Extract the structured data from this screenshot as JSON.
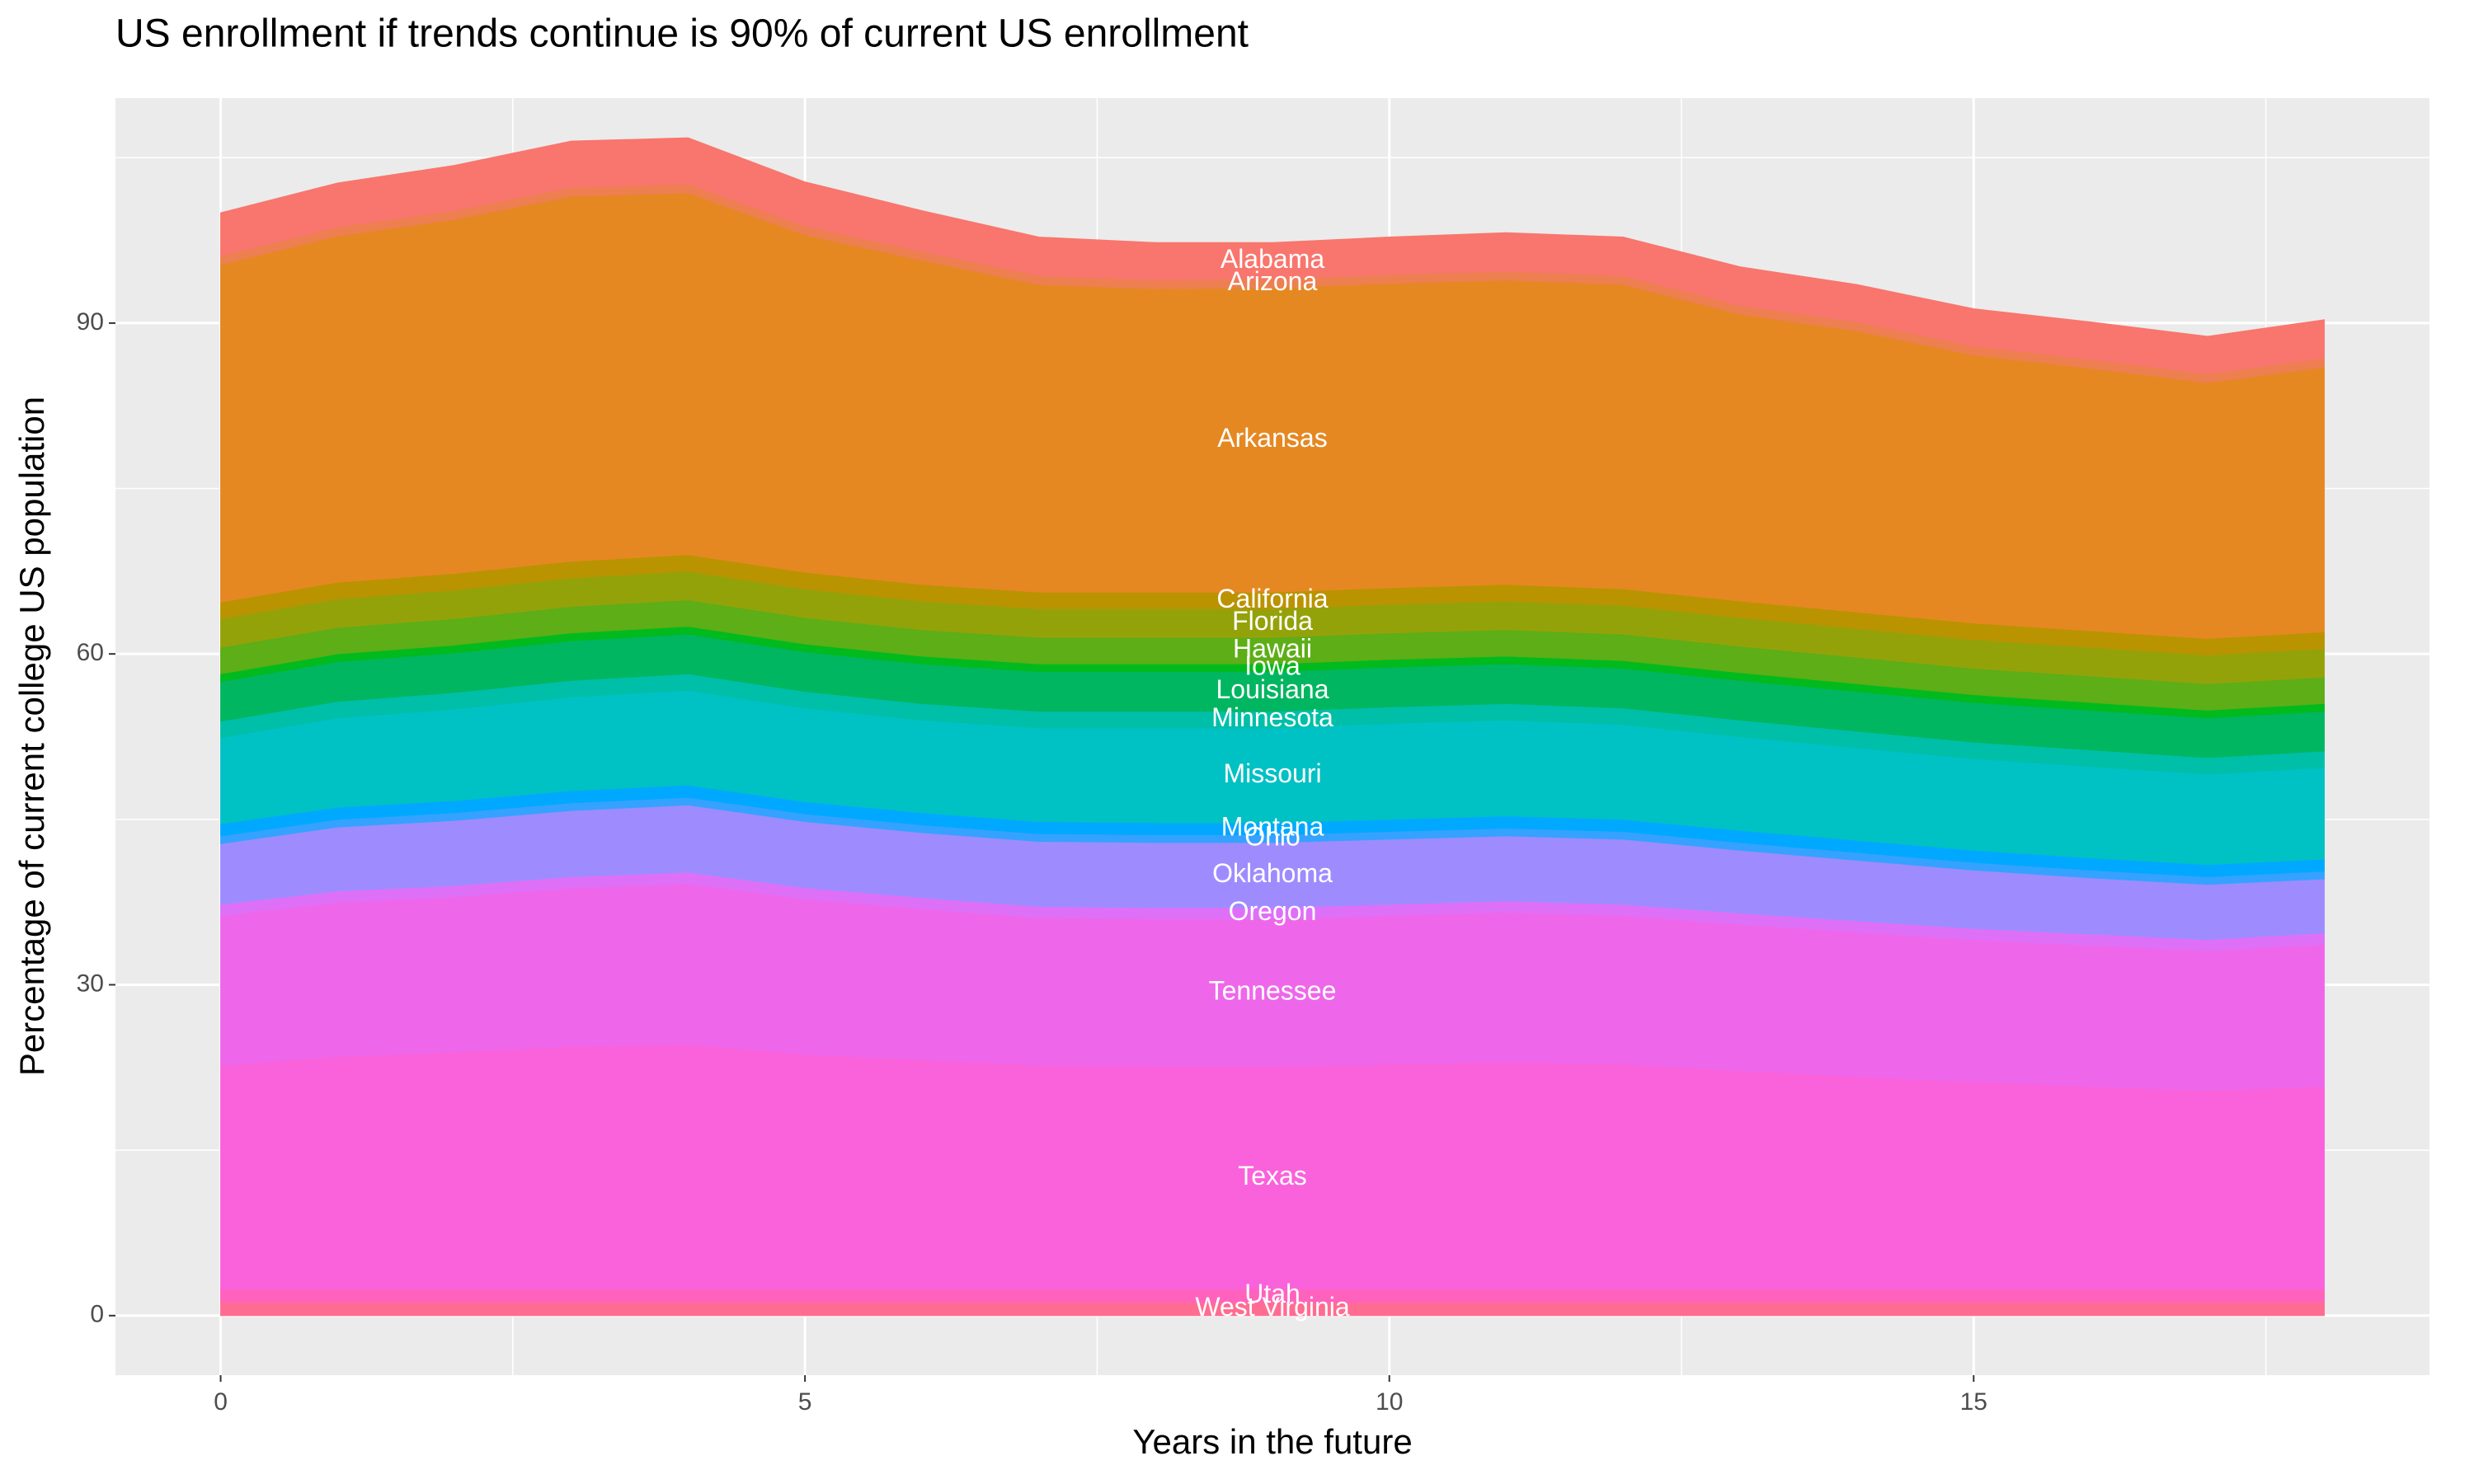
{
  "chart_data": {
    "type": "stacked_area",
    "title": "US enrollment if trends continue is 90% of current US enrollment",
    "x_label": "Years in the future",
    "y_label": "Percentage of current college US population",
    "x": [
      0,
      1,
      2,
      3,
      4,
      5,
      6,
      7,
      8,
      9,
      10,
      11,
      12,
      13,
      14,
      15,
      16,
      17,
      18
    ],
    "xlim": [
      -0.9,
      18.9
    ],
    "xticks": [
      0,
      5,
      10,
      15
    ],
    "ylim": [
      -5.4,
      110.4
    ],
    "yticks": [
      0,
      30,
      60,
      90
    ],
    "grid": true,
    "series": [
      {
        "name": "West Virginia",
        "color": "#FF6C91",
        "values": [
          1.2,
          1.2,
          1.2,
          1.2,
          1.2,
          1.2,
          1.2,
          1.2,
          1.2,
          1.2,
          1.2,
          1.2,
          1.2,
          1.2,
          1.2,
          1.2,
          1.2,
          1.2,
          1.2
        ]
      },
      {
        "name": "Utah",
        "color": "#FF62BC",
        "values": [
          1.2,
          1.2,
          1.2,
          1.2,
          1.2,
          1.2,
          1.2,
          1.2,
          1.2,
          1.2,
          1.2,
          1.2,
          1.2,
          1.2,
          1.2,
          1.2,
          1.2,
          1.2,
          1.2
        ]
      },
      {
        "name": "Texas",
        "color": "#FA62DB",
        "values": [
          20.3,
          21.1,
          21.5,
          22.0,
          22.2,
          21.3,
          20.8,
          20.3,
          20.2,
          20.2,
          20.4,
          20.6,
          20.4,
          19.8,
          19.3,
          18.8,
          18.4,
          18.0,
          18.4
        ]
      },
      {
        "name": "Tennessee",
        "color": "#EE67EA",
        "values": [
          13.6,
          14.0,
          14.1,
          14.4,
          14.6,
          14.1,
          13.7,
          13.4,
          13.4,
          13.4,
          13.5,
          13.6,
          13.5,
          13.3,
          13.1,
          12.9,
          12.8,
          12.7,
          12.9
        ]
      },
      {
        "name": "Oregon",
        "color": "#DE70F8",
        "values": [
          1.0,
          1.0,
          1.0,
          1.0,
          1.0,
          1.0,
          1.0,
          1.0,
          1.0,
          1.0,
          1.0,
          1.0,
          1.0,
          1.0,
          1.0,
          1.0,
          1.0,
          1.0,
          1.0
        ]
      },
      {
        "name": "Oklahoma",
        "color": "#9E8CFF",
        "values": [
          5.5,
          5.8,
          5.9,
          6.0,
          6.1,
          6.0,
          5.9,
          5.9,
          5.9,
          5.9,
          5.9,
          5.9,
          5.9,
          5.7,
          5.5,
          5.3,
          5.1,
          5.0,
          4.9
        ]
      },
      {
        "name": "Ohio",
        "color": "#35A2FF",
        "values": [
          0.7,
          0.7,
          0.7,
          0.7,
          0.7,
          0.7,
          0.7,
          0.7,
          0.7,
          0.7,
          0.7,
          0.7,
          0.7,
          0.7,
          0.7,
          0.7,
          0.7,
          0.7,
          0.7
        ]
      },
      {
        "name": "Montana",
        "color": "#00A9FF",
        "values": [
          1.1,
          1.1,
          1.1,
          1.1,
          1.1,
          1.1,
          1.1,
          1.1,
          1.1,
          1.1,
          1.1,
          1.1,
          1.1,
          1.1,
          1.1,
          1.1,
          1.1,
          1.1,
          1.1
        ]
      },
      {
        "name": "Missouri",
        "color": "#00C1C4",
        "values": [
          7.8,
          8.1,
          8.3,
          8.5,
          8.6,
          8.5,
          8.4,
          8.5,
          8.6,
          8.6,
          8.7,
          8.7,
          8.6,
          8.5,
          8.4,
          8.3,
          8.3,
          8.2,
          8.3
        ]
      },
      {
        "name": "Minnesota",
        "color": "#00BFA8",
        "values": [
          1.5,
          1.5,
          1.5,
          1.5,
          1.5,
          1.5,
          1.5,
          1.5,
          1.5,
          1.5,
          1.5,
          1.5,
          1.5,
          1.5,
          1.5,
          1.5,
          1.5,
          1.5,
          1.5
        ]
      },
      {
        "name": "Louisiana",
        "color": "#00B660",
        "values": [
          3.6,
          3.6,
          3.6,
          3.6,
          3.6,
          3.6,
          3.6,
          3.6,
          3.6,
          3.6,
          3.6,
          3.6,
          3.6,
          3.6,
          3.6,
          3.6,
          3.6,
          3.6,
          3.6
        ]
      },
      {
        "name": "Iowa",
        "color": "#00BA1E",
        "values": [
          0.7,
          0.7,
          0.7,
          0.7,
          0.7,
          0.7,
          0.7,
          0.7,
          0.7,
          0.7,
          0.7,
          0.7,
          0.7,
          0.7,
          0.7,
          0.7,
          0.7,
          0.7,
          0.7
        ]
      },
      {
        "name": "Hawaii",
        "color": "#5DAE17",
        "values": [
          2.4,
          2.4,
          2.4,
          2.4,
          2.4,
          2.4,
          2.4,
          2.4,
          2.4,
          2.4,
          2.4,
          2.4,
          2.4,
          2.4,
          2.4,
          2.4,
          2.4,
          2.4,
          2.4
        ]
      },
      {
        "name": "Florida",
        "color": "#94A20A",
        "values": [
          2.6,
          2.6,
          2.6,
          2.6,
          2.6,
          2.6,
          2.6,
          2.6,
          2.6,
          2.6,
          2.6,
          2.6,
          2.6,
          2.6,
          2.6,
          2.6,
          2.6,
          2.6,
          2.6
        ]
      },
      {
        "name": "California",
        "color": "#BA9300",
        "values": [
          1.5,
          1.5,
          1.5,
          1.5,
          1.5,
          1.5,
          1.5,
          1.5,
          1.5,
          1.5,
          1.5,
          1.5,
          1.5,
          1.5,
          1.5,
          1.5,
          1.5,
          1.5,
          1.5
        ]
      },
      {
        "name": "Arkansas",
        "color": "#E58822",
        "values": [
          30.6,
          31.4,
          32.1,
          33.1,
          32.8,
          30.6,
          29.4,
          27.9,
          27.5,
          27.6,
          27.6,
          27.6,
          27.6,
          26.0,
          25.5,
          24.3,
          23.8,
          23.2,
          24.0
        ]
      },
      {
        "name": "Arizona",
        "color": "#EE7F50",
        "values": [
          0.8,
          0.8,
          0.8,
          0.8,
          0.8,
          0.8,
          0.8,
          0.8,
          0.8,
          0.8,
          0.8,
          0.8,
          0.8,
          0.8,
          0.8,
          0.8,
          0.8,
          0.8,
          0.8
        ]
      },
      {
        "name": "Alabama",
        "color": "#F8766D",
        "values": [
          3.9,
          4.0,
          4.1,
          4.2,
          4.2,
          4.0,
          3.7,
          3.5,
          3.4,
          3.3,
          3.4,
          3.5,
          3.5,
          3.5,
          3.4,
          3.4,
          3.4,
          3.4,
          3.5
        ]
      }
    ]
  }
}
